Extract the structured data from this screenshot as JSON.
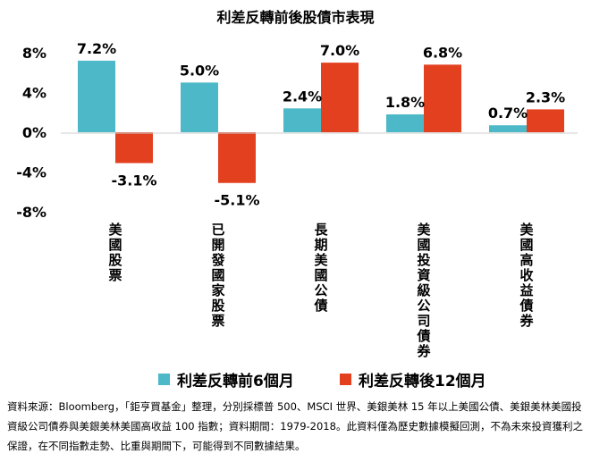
{
  "chart_data": {
    "type": "bar",
    "title": "利差反轉前後股債市表現",
    "categories": [
      "美國股票",
      "已開發國家股票",
      "長期美國公債",
      "美國投資級公司債券",
      "美國高收益債券"
    ],
    "series": [
      {
        "name": "利差反轉前6個月",
        "values": [
          7.2,
          5.0,
          2.4,
          1.8,
          0.7
        ],
        "labels": [
          "7.2%",
          "5.0%",
          "2.4%",
          "1.8%",
          "0.7%"
        ],
        "color": "#4db8c7"
      },
      {
        "name": "利差反轉後12個月",
        "values": [
          -3.1,
          -5.1,
          7.0,
          6.8,
          2.3
        ],
        "labels": [
          "-3.1%",
          "-5.1%",
          "7.0%",
          "6.8%",
          "2.3%"
        ],
        "color": "#e2401f"
      }
    ],
    "yticks": [
      8,
      4,
      0,
      -4,
      -8
    ],
    "ytick_labels": [
      "8%",
      "4%",
      "0%",
      "-4%",
      "-8%"
    ],
    "ylim": [
      -8,
      8
    ],
    "grid": false,
    "legend_position": "bottom"
  },
  "source_note": "資料來源：Bloomberg，「鉅亨買基金」整理，分別採標普 500、MSCI 世界、美銀美林 15 年以上美國公債、美銀美林美國投資級公司債券與美銀美林美國高收益 100 指數；資料期間：1979-2018。此資料僅為歷史數據模擬回測，不為未來投資獲利之保證，在不同指數走勢、比重與期間下，可能得到不同數據結果。"
}
